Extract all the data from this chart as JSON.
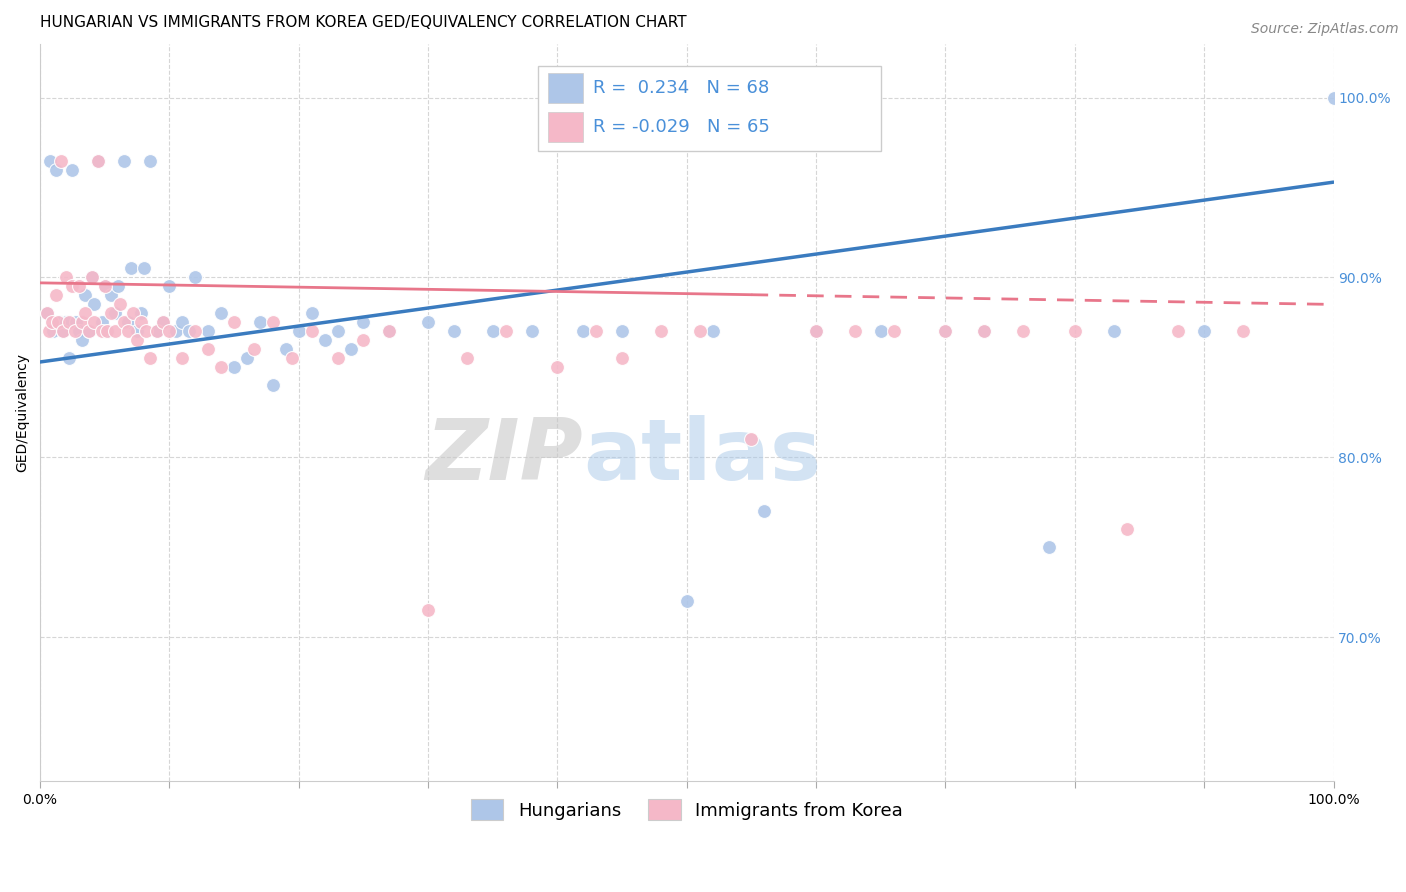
{
  "title": "HUNGARIAN VS IMMIGRANTS FROM KOREA GED/EQUIVALENCY CORRELATION CHART",
  "source": "Source: ZipAtlas.com",
  "ylabel": "GED/Equivalency",
  "watermark_zip": "ZIP",
  "watermark_atlas": "atlas",
  "legend_blue_label": "Hungarians",
  "legend_pink_label": "Immigrants from Korea",
  "legend_blue_r": "R =  0.234",
  "legend_blue_n": "N = 68",
  "legend_pink_r": "R = -0.029",
  "legend_pink_n": "N = 65",
  "blue_color": "#aec6e8",
  "pink_color": "#f5b8c8",
  "blue_line_color": "#3a7bbf",
  "pink_line_color": "#e8768a",
  "xlim": [
    0.0,
    1.0
  ],
  "ylim": [
    0.62,
    1.03
  ],
  "yticks": [
    0.7,
    0.8,
    0.9,
    1.0
  ],
  "ytick_labels": [
    "70.0%",
    "80.0%",
    "90.0%",
    "100.0%"
  ],
  "xticks": [
    0.0,
    0.1,
    0.2,
    0.3,
    0.4,
    0.5,
    0.6,
    0.7,
    0.8,
    0.9,
    1.0
  ],
  "xtick_labels": [
    "0.0%",
    "",
    "",
    "",
    "",
    "",
    "",
    "",
    "",
    "",
    "100.0%"
  ],
  "blue_scatter_x": [
    0.005,
    0.008,
    0.01,
    0.012,
    0.015,
    0.018,
    0.02,
    0.022,
    0.025,
    0.028,
    0.03,
    0.032,
    0.035,
    0.038,
    0.04,
    0.042,
    0.045,
    0.048,
    0.05,
    0.052,
    0.055,
    0.058,
    0.06,
    0.065,
    0.068,
    0.07,
    0.075,
    0.078,
    0.08,
    0.085,
    0.09,
    0.095,
    0.1,
    0.105,
    0.11,
    0.115,
    0.12,
    0.13,
    0.14,
    0.15,
    0.16,
    0.17,
    0.18,
    0.19,
    0.2,
    0.21,
    0.22,
    0.23,
    0.24,
    0.25,
    0.27,
    0.3,
    0.32,
    0.35,
    0.38,
    0.42,
    0.45,
    0.5,
    0.52,
    0.56,
    0.6,
    0.65,
    0.7,
    0.73,
    0.78,
    0.83,
    0.9,
    1.0
  ],
  "blue_scatter_y": [
    0.88,
    0.965,
    0.87,
    0.96,
    0.875,
    0.87,
    0.875,
    0.855,
    0.96,
    0.875,
    0.87,
    0.865,
    0.89,
    0.87,
    0.9,
    0.885,
    0.965,
    0.875,
    0.895,
    0.87,
    0.89,
    0.88,
    0.895,
    0.965,
    0.875,
    0.905,
    0.87,
    0.88,
    0.905,
    0.965,
    0.87,
    0.875,
    0.895,
    0.87,
    0.875,
    0.87,
    0.9,
    0.87,
    0.88,
    0.85,
    0.855,
    0.875,
    0.84,
    0.86,
    0.87,
    0.88,
    0.865,
    0.87,
    0.86,
    0.875,
    0.87,
    0.875,
    0.87,
    0.87,
    0.87,
    0.87,
    0.87,
    0.72,
    0.87,
    0.77,
    0.87,
    0.87,
    0.87,
    0.87,
    0.75,
    0.87,
    0.87,
    1.0
  ],
  "pink_scatter_x": [
    0.005,
    0.007,
    0.009,
    0.012,
    0.014,
    0.016,
    0.018,
    0.02,
    0.022,
    0.025,
    0.027,
    0.03,
    0.032,
    0.035,
    0.038,
    0.04,
    0.042,
    0.045,
    0.048,
    0.05,
    0.052,
    0.055,
    0.058,
    0.062,
    0.065,
    0.068,
    0.072,
    0.075,
    0.078,
    0.082,
    0.085,
    0.09,
    0.095,
    0.1,
    0.11,
    0.12,
    0.13,
    0.14,
    0.15,
    0.165,
    0.18,
    0.195,
    0.21,
    0.23,
    0.25,
    0.27,
    0.3,
    0.33,
    0.36,
    0.4,
    0.43,
    0.45,
    0.48,
    0.51,
    0.55,
    0.6,
    0.63,
    0.66,
    0.7,
    0.73,
    0.76,
    0.8,
    0.84,
    0.88,
    0.93
  ],
  "pink_scatter_y": [
    0.88,
    0.87,
    0.875,
    0.89,
    0.875,
    0.965,
    0.87,
    0.9,
    0.875,
    0.895,
    0.87,
    0.895,
    0.875,
    0.88,
    0.87,
    0.9,
    0.875,
    0.965,
    0.87,
    0.895,
    0.87,
    0.88,
    0.87,
    0.885,
    0.875,
    0.87,
    0.88,
    0.865,
    0.875,
    0.87,
    0.855,
    0.87,
    0.875,
    0.87,
    0.855,
    0.87,
    0.86,
    0.85,
    0.875,
    0.86,
    0.875,
    0.855,
    0.87,
    0.855,
    0.865,
    0.87,
    0.715,
    0.855,
    0.87,
    0.85,
    0.87,
    0.855,
    0.87,
    0.87,
    0.81,
    0.87,
    0.87,
    0.87,
    0.87,
    0.87,
    0.87,
    0.87,
    0.76,
    0.87,
    0.87
  ],
  "blue_line_x_start": 0.0,
  "blue_line_x_end": 1.0,
  "blue_line_y_start": 0.853,
  "blue_line_y_end": 0.953,
  "pink_line_solid_x_start": 0.0,
  "pink_line_solid_x_end": 0.55,
  "pink_line_dash_x_start": 0.55,
  "pink_line_dash_x_end": 1.0,
  "pink_line_y_start": 0.897,
  "pink_line_y_end": 0.885,
  "title_fontsize": 11,
  "axis_label_fontsize": 10,
  "tick_fontsize": 10,
  "legend_fontsize": 13,
  "source_fontsize": 10,
  "marker_size": 100,
  "background_color": "#ffffff",
  "grid_color": "#cccccc",
  "text_color": "#4a90d9"
}
